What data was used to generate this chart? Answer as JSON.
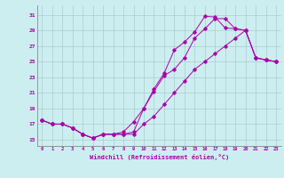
{
  "xlabel": "Windchill (Refroidissement éolien,°C)",
  "bg_color": "#cceef0",
  "grid_color": "#aacccc",
  "line_color": "#aa00aa",
  "x_ticks": [
    0,
    1,
    2,
    3,
    4,
    5,
    6,
    7,
    8,
    9,
    10,
    11,
    12,
    13,
    14,
    15,
    16,
    17,
    18,
    19,
    20,
    21,
    22,
    23
  ],
  "y_ticks": [
    15,
    17,
    19,
    21,
    23,
    25,
    27,
    29,
    31
  ],
  "xlim": [
    -0.5,
    23.5
  ],
  "ylim": [
    14.2,
    32.2
  ],
  "line1_x": [
    0,
    1,
    2,
    3,
    4,
    5,
    6,
    7,
    8,
    9,
    10,
    11,
    12,
    13,
    14,
    15,
    16,
    17,
    18,
    19,
    20,
    21,
    22,
    23
  ],
  "line1_y": [
    17.5,
    17.0,
    17.0,
    16.5,
    15.7,
    15.2,
    15.7,
    15.7,
    15.7,
    16.0,
    19.0,
    21.2,
    23.2,
    24.0,
    25.5,
    28.0,
    29.2,
    30.5,
    30.5,
    29.2,
    29.0,
    25.5,
    25.2,
    25.0
  ],
  "line2_x": [
    0,
    1,
    2,
    3,
    4,
    5,
    6,
    7,
    8,
    9,
    10,
    11,
    12,
    13,
    14,
    15,
    16,
    17,
    18,
    19,
    20,
    21,
    22,
    23
  ],
  "line2_y": [
    17.5,
    17.0,
    17.0,
    16.5,
    15.7,
    15.2,
    15.7,
    15.7,
    16.0,
    17.3,
    19.0,
    21.5,
    23.5,
    26.5,
    27.5,
    28.8,
    30.8,
    30.7,
    29.3,
    29.2,
    29.0,
    25.5,
    25.2,
    25.0
  ],
  "line3_x": [
    0,
    1,
    2,
    3,
    4,
    5,
    6,
    7,
    8,
    9,
    10,
    11,
    12,
    13,
    14,
    15,
    16,
    17,
    18,
    19,
    20,
    21,
    22,
    23
  ],
  "line3_y": [
    17.5,
    17.0,
    17.0,
    16.5,
    15.7,
    15.2,
    15.7,
    15.7,
    15.7,
    15.7,
    17.0,
    18.0,
    19.5,
    21.0,
    22.5,
    24.0,
    25.0,
    26.0,
    27.0,
    28.0,
    29.0,
    25.5,
    25.2,
    25.0
  ]
}
